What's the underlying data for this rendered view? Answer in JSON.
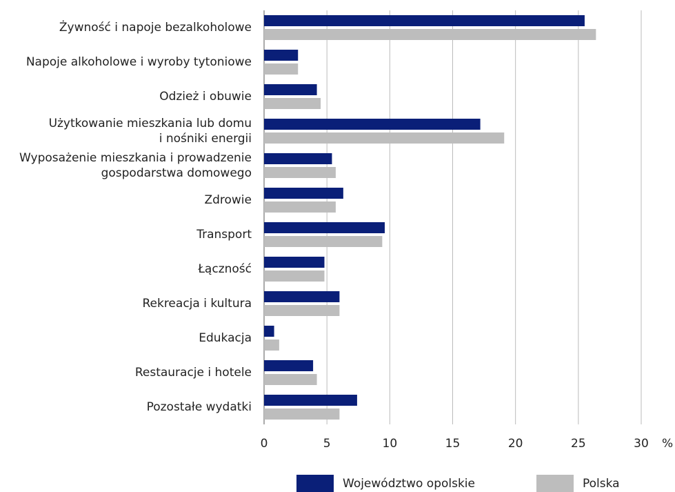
{
  "chart_data": {
    "type": "barh",
    "categories": [
      "Żywność i napoje bezalkoholowe",
      "Napoje alkoholowe i wyroby tytoniowe",
      "Odzież i obuwie",
      "Użytkowanie mieszkania lub domu\ni nośniki energii",
      "Wyposażenie mieszkania i prowadzenie\ngospodarstwa domowego",
      "Zdrowie",
      "Transport",
      "Łączność",
      "Rekreacja i kultura",
      "Edukacja",
      "Restauracje i hotele",
      "Pozostałe wydatki"
    ],
    "series": [
      {
        "name": "Województwo opolskie",
        "color": "#0a1f78",
        "values": [
          25.5,
          2.7,
          4.2,
          17.2,
          5.4,
          6.3,
          9.6,
          4.8,
          6.0,
          0.8,
          3.9,
          7.4
        ]
      },
      {
        "name": "Polska",
        "color": "#bdbdbd",
        "values": [
          26.4,
          2.7,
          4.5,
          19.1,
          5.7,
          5.7,
          9.4,
          4.8,
          6.0,
          1.2,
          4.2,
          6.0
        ]
      }
    ],
    "xlim": [
      0,
      30
    ],
    "xticks": [
      0,
      5,
      10,
      15,
      20,
      25,
      30
    ],
    "xlabel": "%",
    "grid": true
  }
}
